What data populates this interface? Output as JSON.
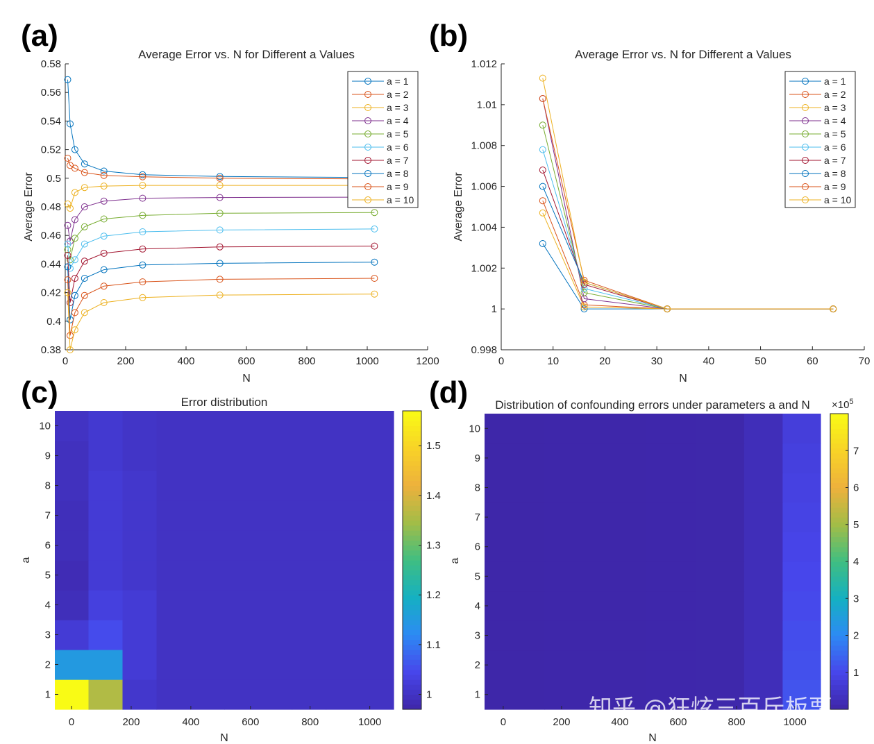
{
  "watermark": "知乎 @狂炫三百斤板栗",
  "panels": [
    {
      "letter": "(a)"
    },
    {
      "letter": "(b)"
    },
    {
      "letter": "(c)"
    },
    {
      "letter": "(d)"
    }
  ],
  "colors": {
    "series": [
      "#0072BD",
      "#D95319",
      "#EDB120",
      "#7E2F8E",
      "#77AC30",
      "#4DBEEE",
      "#A2142F",
      "#0072BD",
      "#D95319",
      "#EDB120"
    ],
    "parula": [
      "#3E26A8",
      "#4746EB",
      "#2D8AF4",
      "#15B0C2",
      "#3FBE82",
      "#A2BD47",
      "#EDB13C",
      "#F8D327",
      "#F9FB15"
    ]
  },
  "chart_data": [
    {
      "type": "line",
      "title": "Average Error vs. N for Different a Values",
      "xlabel": "N",
      "ylabel": "Average Error",
      "xlim": [
        0,
        1200
      ],
      "ylim": [
        0.38,
        0.58
      ],
      "xticks": [
        0,
        200,
        400,
        600,
        800,
        1000,
        1200
      ],
      "yticks": [
        0.38,
        0.4,
        0.42,
        0.44,
        0.46,
        0.48,
        0.5,
        0.52,
        0.54,
        0.56,
        0.58
      ],
      "x": [
        8,
        16,
        32,
        64,
        128,
        256,
        512,
        1024
      ],
      "legend": "top-right",
      "series": [
        {
          "name": "a = 1",
          "values": [
            0.569,
            0.538,
            0.52,
            0.51,
            0.505,
            0.5025,
            0.5012,
            0.5005
          ]
        },
        {
          "name": "a = 2",
          "values": [
            0.514,
            0.509,
            0.507,
            0.504,
            0.502,
            0.501,
            0.5,
            0.4995
          ]
        },
        {
          "name": "a = 3",
          "values": [
            0.482,
            0.479,
            0.49,
            0.4935,
            0.4945,
            0.495,
            0.495,
            0.495
          ]
        },
        {
          "name": "a = 4",
          "values": [
            0.467,
            0.456,
            0.471,
            0.48,
            0.484,
            0.486,
            0.4865,
            0.4868
          ]
        },
        {
          "name": "a = 5",
          "values": [
            0.45,
            0.443,
            0.458,
            0.466,
            0.4715,
            0.474,
            0.4755,
            0.476
          ]
        },
        {
          "name": "a = 6",
          "values": [
            0.454,
            0.437,
            0.443,
            0.454,
            0.4595,
            0.4625,
            0.4638,
            0.4645
          ]
        },
        {
          "name": "a = 7",
          "values": [
            0.446,
            0.413,
            0.43,
            0.442,
            0.4475,
            0.4505,
            0.452,
            0.4525
          ]
        },
        {
          "name": "a = 8",
          "values": [
            0.438,
            0.401,
            0.418,
            0.43,
            0.436,
            0.4393,
            0.4405,
            0.4413
          ]
        },
        {
          "name": "a = 9",
          "values": [
            0.429,
            0.39,
            0.406,
            0.418,
            0.4245,
            0.4275,
            0.4293,
            0.43
          ]
        },
        {
          "name": "a = 10",
          "values": [
            0.42,
            0.38,
            0.394,
            0.406,
            0.413,
            0.4165,
            0.4183,
            0.419
          ]
        }
      ]
    },
    {
      "type": "line",
      "title": "Average Error vs. N for Different a Values",
      "xlabel": "N",
      "ylabel": "Average Error",
      "xlim": [
        0,
        70
      ],
      "ylim": [
        0.998,
        1.012
      ],
      "xticks": [
        0,
        10,
        20,
        30,
        40,
        50,
        60,
        70
      ],
      "yticks": [
        0.998,
        1,
        1.002,
        1.004,
        1.006,
        1.008,
        1.01,
        1.012
      ],
      "x": [
        8,
        16,
        32,
        64
      ],
      "legend": "top-right",
      "series": [
        {
          "name": "a = 1",
          "values": [
            1.0032,
            1.0,
            1.0,
            1.0
          ]
        },
        {
          "name": "a = 2",
          "values": [
            1.0053,
            1.0002,
            1.0,
            1.0
          ]
        },
        {
          "name": "a = 3",
          "values": [
            1.0047,
            1.0001,
            1.0,
            1.0
          ]
        },
        {
          "name": "a = 4",
          "values": [
            1.0103,
            1.0005,
            1.0,
            1.0
          ]
        },
        {
          "name": "a = 5",
          "values": [
            1.009,
            1.0008,
            1.0,
            1.0
          ]
        },
        {
          "name": "a = 6",
          "values": [
            1.0078,
            1.001,
            1.0,
            1.0
          ]
        },
        {
          "name": "a = 7",
          "values": [
            1.0068,
            1.0012,
            1.0,
            1.0
          ]
        },
        {
          "name": "a = 8",
          "values": [
            1.006,
            1.0013,
            1.0,
            1.0
          ]
        },
        {
          "name": "a = 9",
          "values": [
            1.0103,
            1.0014,
            1.0,
            1.0
          ]
        },
        {
          "name": "a = 10",
          "values": [
            1.0113,
            1.0013,
            1.0,
            1.0
          ]
        }
      ]
    },
    {
      "type": "heatmap",
      "title": "Error distribution",
      "xlabel": "N",
      "ylabel": "a",
      "x": [
        8,
        16,
        32,
        64,
        128,
        256,
        512,
        1024
      ],
      "xlim": [
        -56,
        1080
      ],
      "xticks": [
        0,
        200,
        400,
        600,
        800,
        1000
      ],
      "y": [
        1,
        2,
        3,
        4,
        5,
        6,
        7,
        8,
        9,
        10
      ],
      "ylim": [
        0.5,
        10.5
      ],
      "yticks": [
        1,
        2,
        3,
        4,
        5,
        6,
        7,
        8,
        9,
        10
      ],
      "clim": [
        0.97,
        1.57
      ],
      "cticks": [
        1,
        1.1,
        1.2,
        1.3,
        1.4,
        1.5
      ],
      "values": [
        [
          1.57,
          1.36,
          1.01,
          1.0,
          1.0,
          1.0,
          1.0,
          1.0
        ],
        [
          1.15,
          1.15,
          1.02,
          1.0,
          1.0,
          1.0,
          1.0,
          1.0
        ],
        [
          1.02,
          1.05,
          1.02,
          1.0,
          1.0,
          1.0,
          1.0,
          1.0
        ],
        [
          0.99,
          1.03,
          1.02,
          1.0,
          1.0,
          1.0,
          1.0,
          1.0
        ],
        [
          0.985,
          1.02,
          1.01,
          1.0,
          1.0,
          1.0,
          1.0,
          1.0
        ],
        [
          0.99,
          1.02,
          1.01,
          1.0,
          1.0,
          1.0,
          1.0,
          1.0
        ],
        [
          0.99,
          1.02,
          1.01,
          1.0,
          1.0,
          1.0,
          1.0,
          1.0
        ],
        [
          0.995,
          1.02,
          1.01,
          1.0,
          1.0,
          1.0,
          1.0,
          1.0
        ],
        [
          0.995,
          1.015,
          1.005,
          1.0,
          1.0,
          1.0,
          1.0,
          1.0
        ],
        [
          1.0,
          1.015,
          1.005,
          1.0,
          1.0,
          1.0,
          1.0,
          1.0
        ]
      ]
    },
    {
      "type": "heatmap",
      "title": "Distribution of confounding errors under parameters a and N",
      "xlabel": "N",
      "ylabel": "a",
      "x": [
        16,
        32,
        64,
        128,
        256,
        512,
        1024
      ],
      "xlim": [
        -64,
        1088
      ],
      "xticks": [
        0,
        200,
        400,
        600,
        800,
        1000
      ],
      "ylim": [
        0.5,
        10.5
      ],
      "yticks": [
        1,
        2,
        3,
        4,
        5,
        6,
        7,
        8,
        9,
        10
      ],
      "clim": [
        0,
        800000
      ],
      "cticks": [
        100000,
        200000,
        300000,
        400000,
        500000,
        600000,
        700000
      ],
      "ctick_labels": [
        "1",
        "2",
        "3",
        "4",
        "5",
        "6",
        "7"
      ],
      "cexponent": "×10",
      "cexponent_power": "5",
      "values": [
        [
          2000,
          2500,
          3000,
          4000,
          5000,
          25000,
          120000
        ],
        [
          2000,
          2500,
          3000,
          4000,
          5000,
          25000,
          115000
        ],
        [
          2000,
          2500,
          3000,
          4000,
          5000,
          25000,
          110000
        ],
        [
          2000,
          2500,
          3000,
          4000,
          5000,
          25000,
          105000
        ],
        [
          2000,
          2500,
          3000,
          4000,
          5000,
          25000,
          100000
        ],
        [
          2000,
          2500,
          3000,
          4000,
          5000,
          25000,
          95000
        ],
        [
          2000,
          2500,
          3000,
          4000,
          5000,
          25000,
          90000
        ],
        [
          2000,
          2500,
          3000,
          4000,
          5000,
          25000,
          85000
        ],
        [
          2000,
          2500,
          3000,
          4000,
          5000,
          25000,
          80000
        ],
        [
          2000,
          2500,
          3000,
          4000,
          5000,
          25000,
          75000
        ]
      ]
    }
  ]
}
